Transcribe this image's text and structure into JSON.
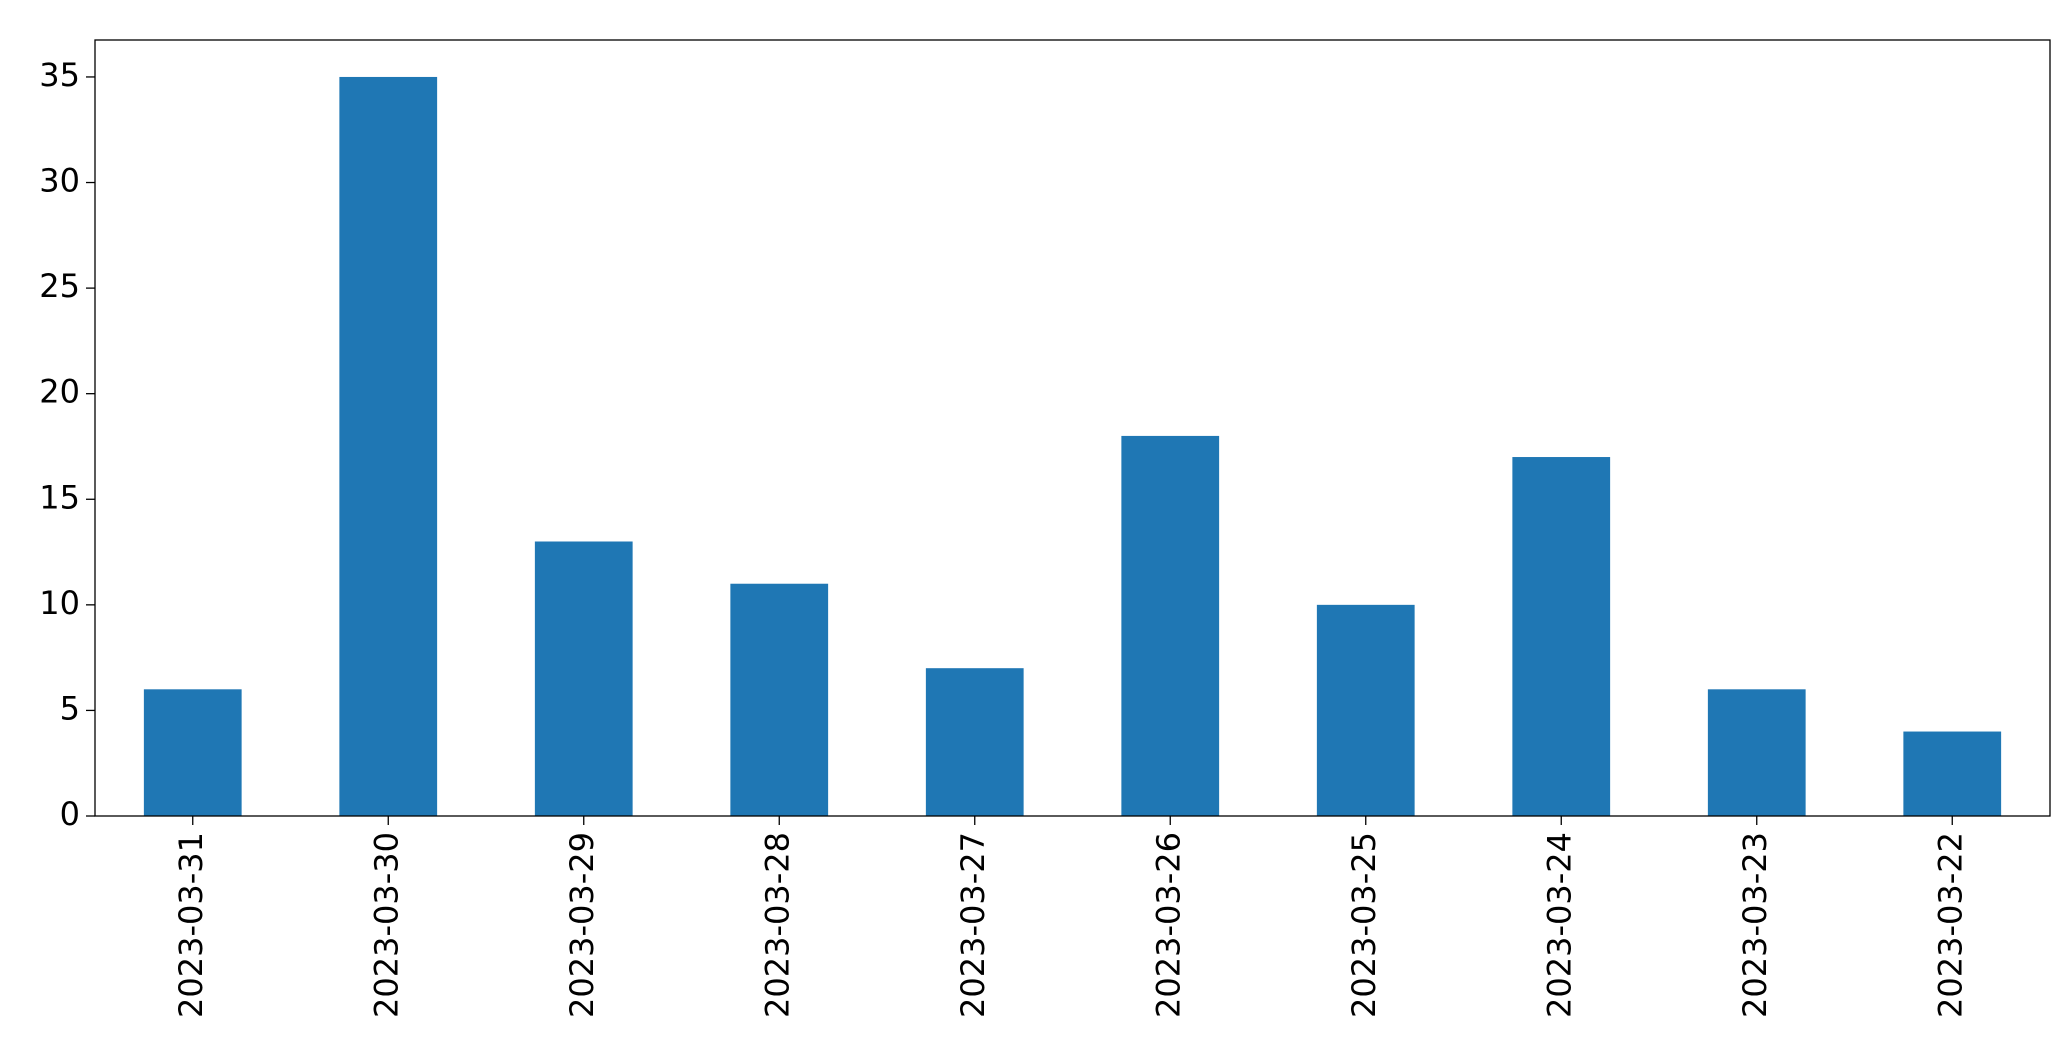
{
  "chart_data": {
    "type": "bar",
    "categories": [
      "2023-03-31",
      "2023-03-30",
      "2023-03-29",
      "2023-03-28",
      "2023-03-27",
      "2023-03-26",
      "2023-03-25",
      "2023-03-24",
      "2023-03-23",
      "2023-03-22"
    ],
    "values": [
      6,
      35,
      13,
      11,
      7,
      18,
      10,
      17,
      6,
      4
    ],
    "color": "#1f77b4",
    "ylim": [
      0,
      36.75
    ],
    "yticks": [
      0,
      5,
      10,
      15,
      20,
      25,
      30,
      35
    ],
    "grid": false
  }
}
